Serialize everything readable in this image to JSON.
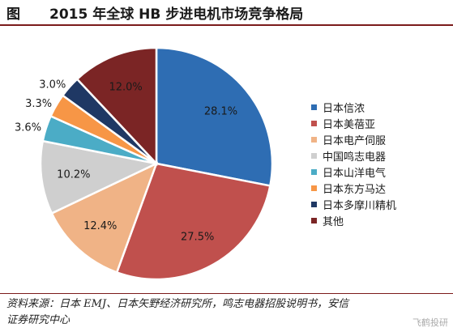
{
  "header": {
    "label": "图",
    "title": "2015 年全球 HB 步进电机市场竞争格局"
  },
  "chart_data": {
    "type": "pie",
    "title": "2015 年全球 HB 步进电机市场竞争格局",
    "legend_position": "right",
    "slices": [
      {
        "name": "日本信浓",
        "value": 28.1,
        "label": "28.1%",
        "color": "#2e6db3"
      },
      {
        "name": "日本美蓓亚",
        "value": 27.5,
        "label": "27.5%",
        "color": "#c0504d"
      },
      {
        "name": "日本电产伺服",
        "value": 12.4,
        "label": "12.4%",
        "color": "#f0b386"
      },
      {
        "name": "中国鸣志电器",
        "value": 10.2,
        "label": "10.2%",
        "color": "#cfcfcf"
      },
      {
        "name": "日本山洋电气",
        "value": 3.6,
        "label": "3.6%",
        "color": "#4bacc6"
      },
      {
        "name": "日本东方马达",
        "value": 3.3,
        "label": "3.3%",
        "color": "#f79646"
      },
      {
        "name": "日本多摩川精机",
        "value": 3.0,
        "label": "3.0%",
        "color": "#1f3864"
      },
      {
        "name": "其他",
        "value": 12.0,
        "label": "12.0%",
        "color": "#7b2525"
      }
    ]
  },
  "source": {
    "line1": "资料来源：日本 EMJ、日本矢野经济研究所，鸣志电器招股说明书，安信",
    "line2": "证券研究中心"
  },
  "watermark": "飞鹤投研"
}
